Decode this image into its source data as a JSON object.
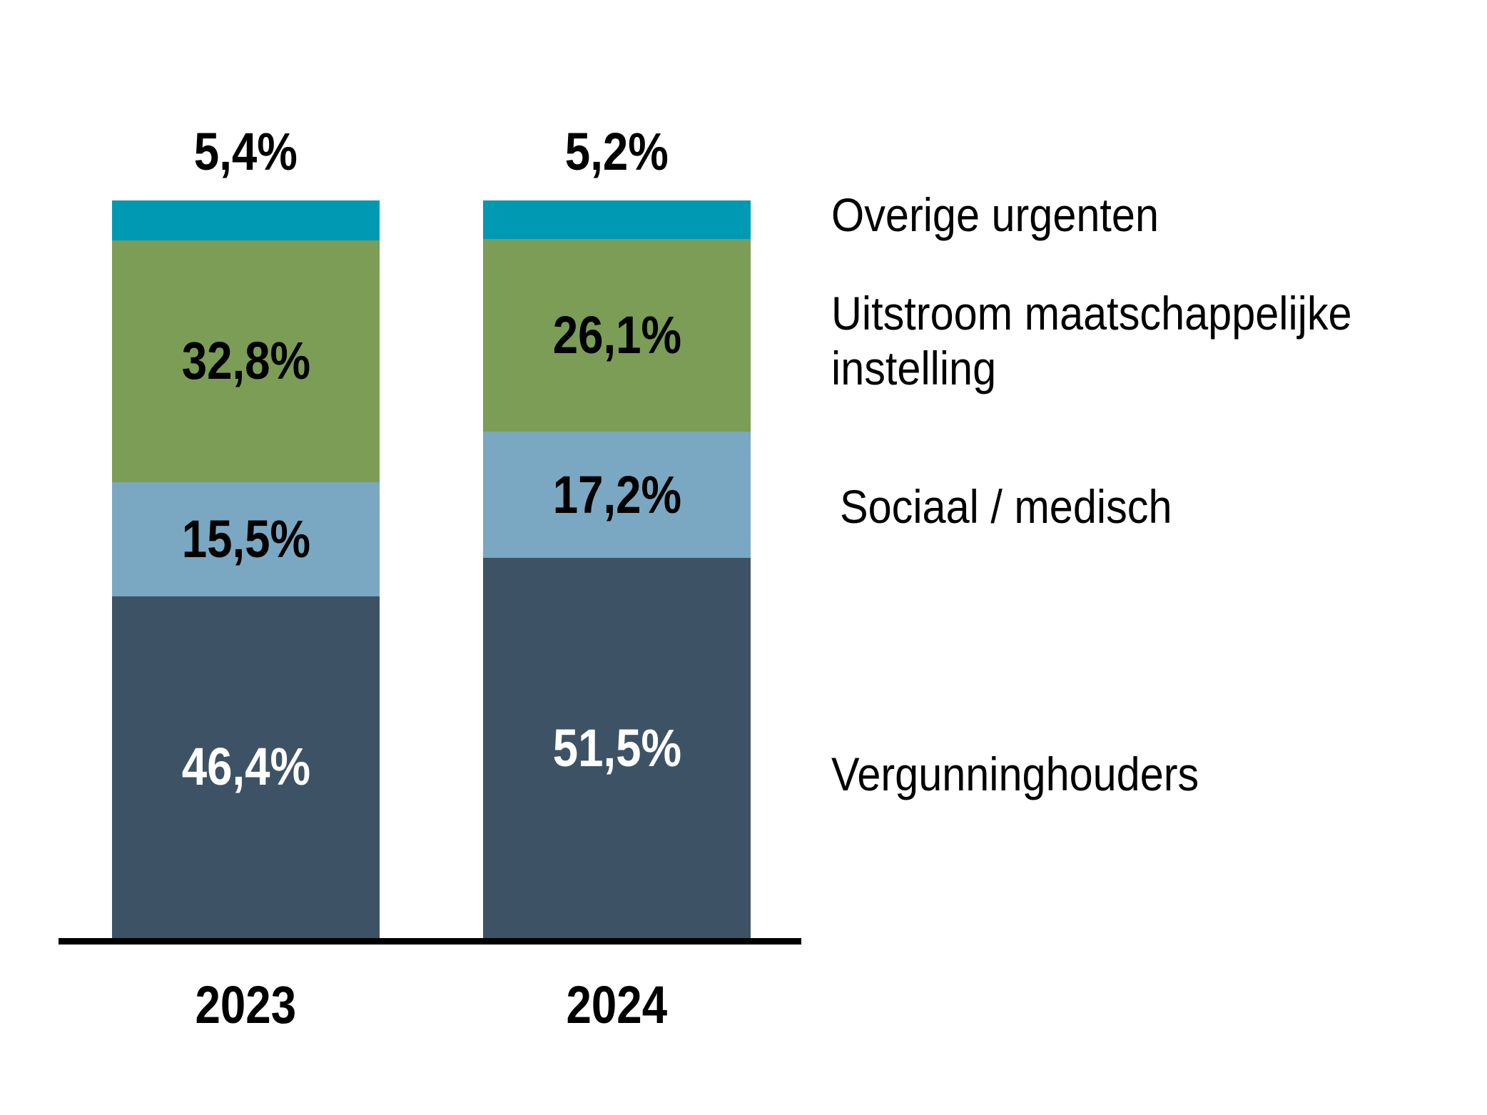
{
  "chart_data": {
    "type": "bar",
    "stacked": true,
    "title": "",
    "categories": [
      "2023",
      "2024"
    ],
    "series": [
      {
        "name": "Overige urgenten",
        "color": "#0099b4",
        "label_color": "#000000",
        "label_position": "above",
        "values": [
          5.4,
          5.2
        ],
        "labels": [
          "5,4%",
          "5,2%"
        ]
      },
      {
        "name": "Uitstroom maatschappelijke instelling",
        "color": "#7b9d55",
        "label_color": "#000000",
        "label_position": "inside",
        "values": [
          32.8,
          26.1
        ],
        "labels": [
          "32,8%",
          "26,1%"
        ]
      },
      {
        "name": "Sociaal / medisch",
        "color": "#7aa8c2",
        "label_color": "#000000",
        "label_position": "inside",
        "values": [
          15.5,
          17.2
        ],
        "labels": [
          "15,5%",
          "17,2%"
        ]
      },
      {
        "name": "Vergunninghouders",
        "color": "#3d5365",
        "label_color": "#ffffff",
        "label_position": "inside",
        "values": [
          46.4,
          51.5
        ],
        "labels": [
          "46,4%",
          "51,5%"
        ]
      }
    ],
    "legend_position": "right",
    "value_format": "percent-comma-decimal",
    "axis": {
      "x_labels": [
        "2023",
        "2024"
      ],
      "baseline_color": "#000000",
      "grid": false,
      "y_axis_visible": false
    }
  }
}
